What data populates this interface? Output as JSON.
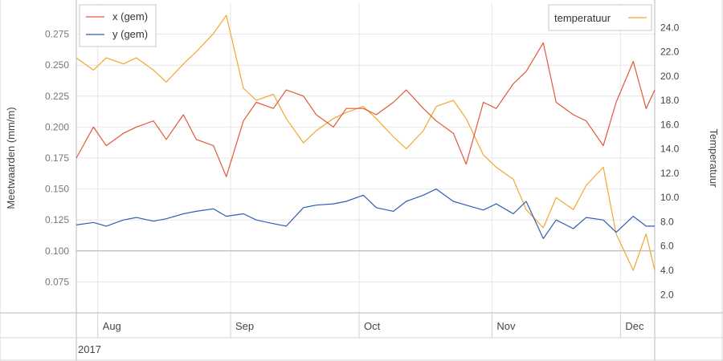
{
  "chart_data": {
    "type": "line",
    "ylabel_left": "Meetwaarden (mm/m)",
    "ylabel_right": "Temperatuur",
    "x_year_label": "2017",
    "x_months": [
      "Aug",
      "Sep",
      "Oct",
      "Nov",
      "Dec"
    ],
    "x_range": [
      "2017-07-27",
      "2017-12-09"
    ],
    "ylim_left": [
      0.05,
      0.3
    ],
    "ylim_right": [
      0.5,
      26.0
    ],
    "yticks_left": [
      "0.275",
      "0.250",
      "0.225",
      "0.200",
      "0.175",
      "0.150",
      "0.125",
      "0.100",
      "0.075"
    ],
    "yticks_right": [
      "24.0",
      "22.0",
      "20.0",
      "18.0",
      "16.0",
      "14.0",
      "12.0",
      "10.0",
      "8.0",
      "6.0",
      "4.0",
      "2.0"
    ],
    "legend_left": {
      "placement": "top-left",
      "entries": [
        "x (gem)",
        "y (gem)"
      ]
    },
    "legend_right": {
      "placement": "top-right",
      "entries": [
        "temperatuur"
      ]
    },
    "grid": true,
    "reference_line_left_y": 0.1,
    "series": [
      {
        "name": "x (gem)",
        "axis": "left",
        "color": "#e05a3a",
        "points": [
          [
            "2017-07-27",
            0.175
          ],
          [
            "2017-07-31",
            0.2
          ],
          [
            "2017-08-03",
            0.185
          ],
          [
            "2017-08-07",
            0.195
          ],
          [
            "2017-08-10",
            0.2
          ],
          [
            "2017-08-14",
            0.205
          ],
          [
            "2017-08-17",
            0.19
          ],
          [
            "2017-08-21",
            0.21
          ],
          [
            "2017-08-24",
            0.19
          ],
          [
            "2017-08-28",
            0.185
          ],
          [
            "2017-08-31",
            0.16
          ],
          [
            "2017-09-04",
            0.205
          ],
          [
            "2017-09-07",
            0.22
          ],
          [
            "2017-09-11",
            0.215
          ],
          [
            "2017-09-14",
            0.23
          ],
          [
            "2017-09-18",
            0.225
          ],
          [
            "2017-09-21",
            0.21
          ],
          [
            "2017-09-25",
            0.2
          ],
          [
            "2017-09-28",
            0.215
          ],
          [
            "2017-10-02",
            0.215
          ],
          [
            "2017-10-05",
            0.21
          ],
          [
            "2017-10-09",
            0.22
          ],
          [
            "2017-10-12",
            0.23
          ],
          [
            "2017-10-16",
            0.215
          ],
          [
            "2017-10-19",
            0.205
          ],
          [
            "2017-10-23",
            0.195
          ],
          [
            "2017-10-26",
            0.17
          ],
          [
            "2017-10-30",
            0.22
          ],
          [
            "2017-11-02",
            0.215
          ],
          [
            "2017-11-06",
            0.235
          ],
          [
            "2017-11-09",
            0.245
          ],
          [
            "2017-11-13",
            0.268
          ],
          [
            "2017-11-16",
            0.22
          ],
          [
            "2017-11-20",
            0.21
          ],
          [
            "2017-11-23",
            0.205
          ],
          [
            "2017-11-27",
            0.185
          ],
          [
            "2017-11-30",
            0.22
          ],
          [
            "2017-12-04",
            0.253
          ],
          [
            "2017-12-07",
            0.215
          ],
          [
            "2017-12-09",
            0.23
          ]
        ]
      },
      {
        "name": "y (gem)",
        "axis": "left",
        "color": "#2f5fb3",
        "points": [
          [
            "2017-07-27",
            0.121
          ],
          [
            "2017-07-31",
            0.123
          ],
          [
            "2017-08-03",
            0.12
          ],
          [
            "2017-08-07",
            0.125
          ],
          [
            "2017-08-10",
            0.127
          ],
          [
            "2017-08-14",
            0.124
          ],
          [
            "2017-08-17",
            0.126
          ],
          [
            "2017-08-21",
            0.13
          ],
          [
            "2017-08-24",
            0.132
          ],
          [
            "2017-08-28",
            0.134
          ],
          [
            "2017-08-31",
            0.128
          ],
          [
            "2017-09-04",
            0.13
          ],
          [
            "2017-09-07",
            0.125
          ],
          [
            "2017-09-11",
            0.122
          ],
          [
            "2017-09-14",
            0.12
          ],
          [
            "2017-09-18",
            0.135
          ],
          [
            "2017-09-21",
            0.137
          ],
          [
            "2017-09-25",
            0.138
          ],
          [
            "2017-09-28",
            0.14
          ],
          [
            "2017-10-02",
            0.145
          ],
          [
            "2017-10-05",
            0.135
          ],
          [
            "2017-10-09",
            0.132
          ],
          [
            "2017-10-12",
            0.14
          ],
          [
            "2017-10-16",
            0.145
          ],
          [
            "2017-10-19",
            0.15
          ],
          [
            "2017-10-23",
            0.14
          ],
          [
            "2017-10-26",
            0.137
          ],
          [
            "2017-10-30",
            0.133
          ],
          [
            "2017-11-02",
            0.138
          ],
          [
            "2017-11-06",
            0.13
          ],
          [
            "2017-11-09",
            0.14
          ],
          [
            "2017-11-13",
            0.11
          ],
          [
            "2017-11-16",
            0.125
          ],
          [
            "2017-11-20",
            0.118
          ],
          [
            "2017-11-23",
            0.127
          ],
          [
            "2017-11-27",
            0.125
          ],
          [
            "2017-11-30",
            0.115
          ],
          [
            "2017-12-04",
            0.128
          ],
          [
            "2017-12-07",
            0.12
          ],
          [
            "2017-12-09",
            0.12
          ]
        ]
      },
      {
        "name": "temperatuur",
        "axis": "right",
        "color": "#f0a830",
        "points": [
          [
            "2017-07-27",
            21.5
          ],
          [
            "2017-07-31",
            20.5
          ],
          [
            "2017-08-03",
            21.5
          ],
          [
            "2017-08-07",
            21.0
          ],
          [
            "2017-08-10",
            21.5
          ],
          [
            "2017-08-14",
            20.5
          ],
          [
            "2017-08-17",
            19.5
          ],
          [
            "2017-08-21",
            21.0
          ],
          [
            "2017-08-24",
            22.0
          ],
          [
            "2017-08-28",
            23.5
          ],
          [
            "2017-08-31",
            25.0
          ],
          [
            "2017-09-04",
            19.0
          ],
          [
            "2017-09-07",
            18.0
          ],
          [
            "2017-09-11",
            18.5
          ],
          [
            "2017-09-14",
            16.5
          ],
          [
            "2017-09-18",
            14.5
          ],
          [
            "2017-09-21",
            15.5
          ],
          [
            "2017-09-25",
            16.5
          ],
          [
            "2017-09-28",
            17.0
          ],
          [
            "2017-10-02",
            17.5
          ],
          [
            "2017-10-05",
            16.5
          ],
          [
            "2017-10-09",
            15.0
          ],
          [
            "2017-10-12",
            14.0
          ],
          [
            "2017-10-16",
            15.5
          ],
          [
            "2017-10-19",
            17.5
          ],
          [
            "2017-10-23",
            18.0
          ],
          [
            "2017-10-26",
            16.5
          ],
          [
            "2017-10-30",
            13.5
          ],
          [
            "2017-11-02",
            12.5
          ],
          [
            "2017-11-06",
            11.5
          ],
          [
            "2017-11-09",
            9.0
          ],
          [
            "2017-11-13",
            7.5
          ],
          [
            "2017-11-16",
            10.0
          ],
          [
            "2017-11-20",
            9.0
          ],
          [
            "2017-11-23",
            11.0
          ],
          [
            "2017-11-27",
            12.5
          ],
          [
            "2017-11-30",
            7.0
          ],
          [
            "2017-12-04",
            4.0
          ],
          [
            "2017-12-07",
            7.0
          ],
          [
            "2017-12-09",
            4.0
          ]
        ]
      }
    ]
  }
}
